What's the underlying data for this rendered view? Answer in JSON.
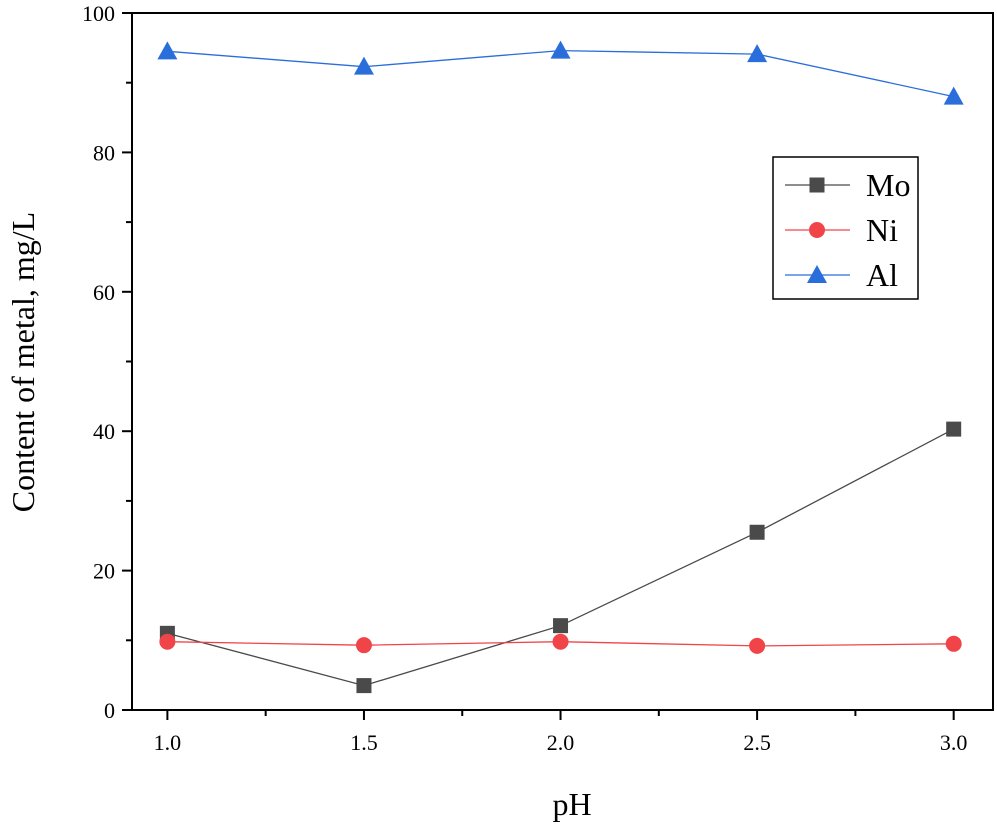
{
  "chart_data": {
    "type": "line",
    "title": "",
    "xlabel": "pH",
    "ylabel": "Content of metal, mg/L",
    "x": [
      1.0,
      1.5,
      2.0,
      2.5,
      3.0
    ],
    "x_tick_labels": [
      "1.0",
      "1.5",
      "2.0",
      "2.5",
      "3.0"
    ],
    "y_ticks": [
      0,
      20,
      40,
      60,
      80,
      100
    ],
    "y_tick_labels": [
      "0",
      "20",
      "40",
      "60",
      "80",
      "100"
    ],
    "xlim": [
      0.91,
      3.1
    ],
    "ylim": [
      0,
      100
    ],
    "grid": false,
    "legend_position": "top-right",
    "series": [
      {
        "name": "Mo",
        "values": [
          11.0,
          3.5,
          12.1,
          25.5,
          40.3
        ],
        "color": "#4a4a4a",
        "marker": "square"
      },
      {
        "name": "Ni",
        "values": [
          9.8,
          9.3,
          9.8,
          9.2,
          9.5
        ],
        "color": "#f04448",
        "marker": "circle"
      },
      {
        "name": "Al",
        "values": [
          94.5,
          92.3,
          94.6,
          94.1,
          88.0
        ],
        "color": "#2a6edb",
        "marker": "triangle"
      }
    ]
  }
}
